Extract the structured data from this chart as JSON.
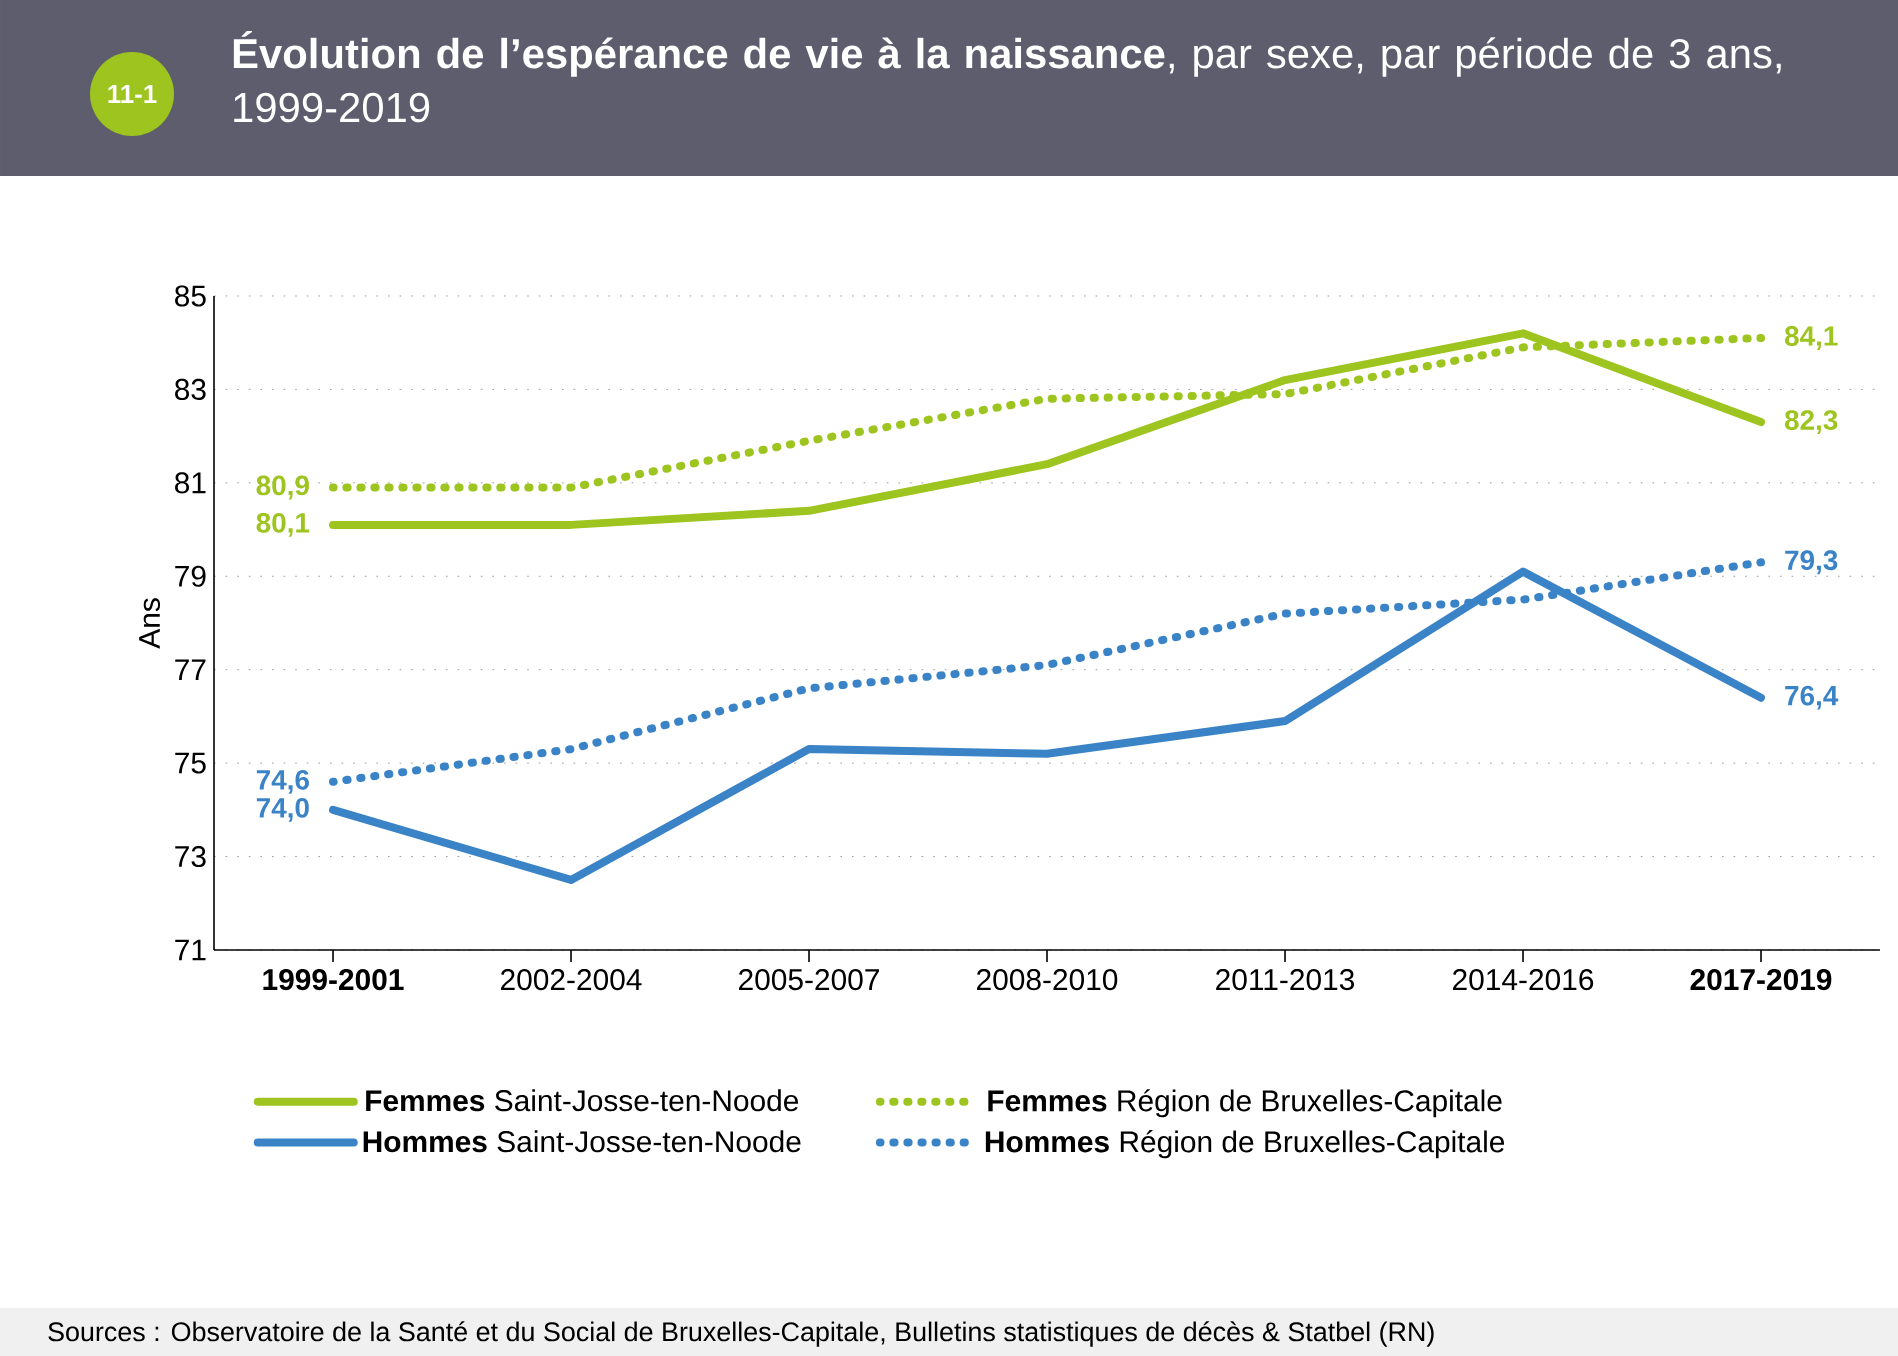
{
  "chart_data": {
    "type": "line",
    "title": "**Évolution de l’espérance de vie à la naissance**, par sexe, par période de 3 ans, 1999-2019",
    "ylabel": "Ans",
    "categories": [
      "**1999-2001**",
      "2002-2004",
      "2005-2007",
      "2008-2010",
      "2011-2013",
      "2014-2016",
      "**2017-2019**"
    ],
    "series": [
      {
        "name": "**Femmes** Saint-Josse-ten-Noode",
        "color": "#9dc41f",
        "line_style": "solid",
        "values": [
          80.1,
          80.1,
          80.4,
          81.4,
          83.2,
          84.2,
          82.3
        ],
        "value_labels": [
          "80,1",
          null,
          null,
          null,
          null,
          null,
          "82,3"
        ]
      },
      {
        "name": "**Femmes** Région de Bruxelles-Capitale",
        "color": "#9dc41f",
        "line_style": "dotted",
        "values": [
          80.9,
          80.9,
          81.9,
          82.8,
          82.9,
          83.9,
          84.1
        ],
        "value_labels": [
          "80,9",
          null,
          null,
          null,
          null,
          null,
          "84,1"
        ]
      },
      {
        "name": "**Hommes** Saint-Josse-ten-Noode",
        "color": "#3a83c6",
        "line_style": "solid",
        "values": [
          74.0,
          72.5,
          75.3,
          75.2,
          75.9,
          79.1,
          76.4
        ],
        "value_labels": [
          "74,0",
          null,
          null,
          null,
          null,
          null,
          "76,4"
        ]
      },
      {
        "name": "**Hommes** Région de Bruxelles-Capitale",
        "color": "#3a83c6",
        "line_style": "dotted",
        "values": [
          74.6,
          75.3,
          76.6,
          77.1,
          78.2,
          78.5,
          79.3
        ],
        "value_labels": [
          "74,6",
          null,
          null,
          null,
          null,
          null,
          "79,3"
        ]
      }
    ],
    "ylim": [
      71,
      85
    ],
    "yticks": [
      71,
      73,
      75,
      77,
      79,
      81,
      83,
      85
    ],
    "grid": "y",
    "legend": "bottom",
    "annotations": [
      "11-1",
      "Sources : Observatoire de la Santé et du Social de Bruxelles-Capitale, Bulletins statistiques de décès & Statbel (RN)"
    ]
  }
}
